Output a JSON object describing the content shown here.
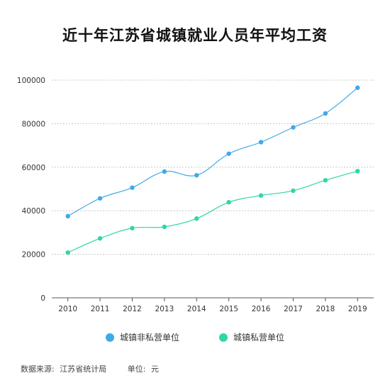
{
  "chart_data": {
    "type": "line",
    "title": "近十年江苏省城镇就业人员年平均工资",
    "categories": [
      "2010",
      "2011",
      "2012",
      "2013",
      "2014",
      "2015",
      "2016",
      "2017",
      "2018",
      "2019"
    ],
    "series": [
      {
        "name": "城镇非私营单位",
        "color": "#3fa9e8",
        "values": [
          37500,
          45700,
          50600,
          58000,
          56300,
          66200,
          71500,
          78300,
          84700,
          96500
        ]
      },
      {
        "name": "城镇私营单位",
        "color": "#2fd6a8",
        "values": [
          20800,
          27300,
          32000,
          32600,
          36400,
          43900,
          47000,
          49200,
          54000,
          58200
        ]
      }
    ],
    "ylim": [
      0,
      100000
    ],
    "yticks": [
      0,
      20000,
      40000,
      60000,
      80000,
      100000
    ],
    "grid": true,
    "legend_position": "bottom"
  },
  "footer": {
    "source_label": "数据来源:",
    "source_value": "江苏省统计局",
    "unit_label": "单位:",
    "unit_value": "元"
  }
}
